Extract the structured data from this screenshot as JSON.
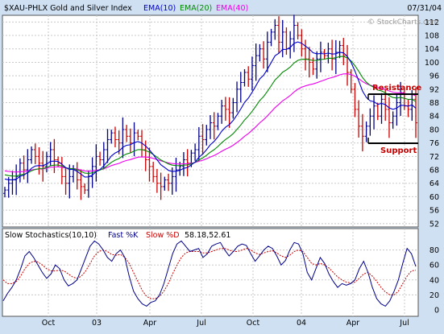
{
  "header": {
    "symbol": "$XAU-PHLX Gold and Silver Index",
    "date": "07/31/04",
    "watermark": "© StockCharts.com"
  },
  "legend": [
    {
      "label": "EMA(10)",
      "color": "#0000cc"
    },
    {
      "label": "EMA(20)",
      "color": "#008800"
    },
    {
      "label": "EMA(40)",
      "color": "#ee00ee"
    }
  ],
  "annotations": {
    "resistance": "Resistance",
    "support": "Support",
    "color": "#cc0000"
  },
  "stoch_legend": {
    "title": "Slow Stochastics(10,10)",
    "fast": "Fast %K",
    "slow": "Slow %D",
    "values": "58.18,52.61",
    "fast_color": "#000088",
    "slow_color": "#cc0000"
  },
  "colors": {
    "background": "#cfe0f2",
    "panel": "#ffffff",
    "up_bar": "#000088",
    "down_bar": "#cc0000"
  },
  "chart_data": {
    "type": "ohlc",
    "title": "$XAU-PHLX Gold and Silver Index",
    "x_ticks": [
      "Oct",
      "03",
      "Apr",
      "Jul",
      "Oct",
      "04",
      "Apr",
      "Jul"
    ],
    "price_axis": {
      "ticks": [
        52,
        56,
        60,
        64,
        68,
        72,
        76,
        80,
        84,
        88,
        92,
        96,
        100,
        104,
        108,
        112
      ],
      "ylim": [
        51,
        114
      ]
    },
    "closes": [
      62,
      64,
      65,
      66,
      70,
      68,
      71,
      74,
      72,
      70,
      69,
      72,
      74,
      71,
      70,
      66,
      64,
      66,
      68,
      65,
      63,
      62,
      66,
      69,
      72,
      71,
      74,
      77,
      79,
      77,
      76,
      80,
      78,
      76,
      79,
      78,
      74,
      71,
      69,
      66,
      64,
      63,
      65,
      64,
      66,
      68,
      69,
      71,
      70,
      73,
      74,
      78,
      77,
      80,
      82,
      81,
      84,
      87,
      86,
      85,
      88,
      92,
      94,
      97,
      95,
      99,
      102,
      104,
      101,
      106,
      109,
      111,
      106,
      109,
      104,
      107,
      111,
      108,
      104,
      101,
      100,
      98,
      101,
      103,
      102,
      104,
      101,
      103,
      105,
      102,
      97,
      92,
      86,
      81,
      78,
      81,
      84,
      87,
      84,
      89,
      86,
      82,
      84,
      88,
      91,
      87,
      86,
      89,
      82
    ],
    "stochastics": {
      "range": [
        0,
        100
      ],
      "ticks": [
        0,
        20,
        40,
        60,
        80
      ],
      "fast_k": [
        12,
        22,
        30,
        40,
        55,
        72,
        78,
        70,
        60,
        50,
        42,
        48,
        60,
        55,
        40,
        32,
        35,
        40,
        55,
        70,
        85,
        92,
        88,
        80,
        70,
        65,
        75,
        80,
        70,
        45,
        25,
        15,
        8,
        5,
        10,
        12,
        20,
        35,
        55,
        75,
        88,
        92,
        85,
        78,
        80,
        82,
        70,
        75,
        85,
        88,
        90,
        80,
        72,
        78,
        85,
        88,
        86,
        75,
        65,
        72,
        80,
        85,
        82,
        72,
        60,
        66,
        80,
        90,
        88,
        75,
        50,
        40,
        55,
        70,
        62,
        48,
        38,
        30,
        35,
        33,
        35,
        40,
        55,
        65,
        50,
        30,
        15,
        8,
        5,
        12,
        25,
        40,
        62,
        82,
        75,
        58
      ],
      "slow_d": [
        40,
        35,
        35,
        38,
        45,
        55,
        62,
        65,
        64,
        60,
        55,
        52,
        52,
        53,
        52,
        48,
        44,
        42,
        45,
        52,
        62,
        72,
        78,
        80,
        78,
        74,
        73,
        74,
        70,
        62,
        50,
        38,
        26,
        18,
        15,
        15,
        18,
        25,
        35,
        48,
        60,
        70,
        76,
        78,
        78,
        78,
        76,
        76,
        78,
        80,
        82,
        82,
        80,
        78,
        78,
        80,
        82,
        80,
        76,
        74,
        76,
        78,
        79,
        76,
        72,
        70,
        73,
        78,
        80,
        78,
        70,
        62,
        60,
        62,
        60,
        56,
        50,
        44,
        40,
        37,
        36,
        37,
        42,
        48,
        50,
        45,
        38,
        30,
        24,
        20,
        20,
        25,
        35,
        45,
        52,
        53
      ]
    }
  }
}
